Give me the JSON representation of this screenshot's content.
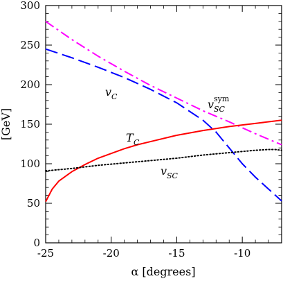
{
  "chart_data": {
    "type": "line",
    "title": "",
    "xlabel": "α [degrees]",
    "ylabel": "[GeV]",
    "xlim": [
      -25,
      -7
    ],
    "ylim": [
      0,
      300
    ],
    "x_ticks": [
      -25,
      -20,
      -15,
      -10
    ],
    "x_tick_labels": [
      "-25",
      "-20",
      "-15",
      "-10"
    ],
    "y_ticks": [
      0,
      50,
      100,
      150,
      200,
      250,
      300
    ],
    "y_tick_labels": [
      "0",
      "50",
      "100",
      "150",
      "200",
      "250",
      "300"
    ],
    "grid": false,
    "legend": "none",
    "series": [
      {
        "key": "v_C",
        "label_main": "v",
        "label_sub": "C",
        "label_sup": "",
        "color": "#0000ff",
        "style": "dashed",
        "x": [
          -25,
          -23,
          -21,
          -19,
          -17,
          -15,
          -13,
          -12,
          -11,
          -10,
          -9,
          -8,
          -7
        ],
        "y": [
          245,
          234,
          222,
          209,
          194,
          177,
          155,
          140,
          120,
          100,
          83,
          68,
          53
        ]
      },
      {
        "key": "v_SC_sym",
        "label_main": "v",
        "label_sub": "SC",
        "label_sup": "sym",
        "color": "#ff00ff",
        "style": "dashdot",
        "x": [
          -25,
          -23,
          -21,
          -19,
          -17,
          -15,
          -13,
          -11,
          -9,
          -7
        ],
        "y": [
          280,
          257,
          236,
          217,
          199,
          183,
          167,
          153,
          138,
          124
        ]
      },
      {
        "key": "T_C",
        "label_main": "T",
        "label_sub": "C",
        "label_sup": "",
        "color": "#ff0000",
        "style": "solid",
        "x": [
          -25,
          -24.5,
          -24,
          -23,
          -22,
          -21,
          -20,
          -19,
          -18,
          -17,
          -15,
          -13,
          -11,
          -9,
          -7
        ],
        "y": [
          52,
          68,
          78,
          90,
          99,
          107,
          113,
          119,
          124,
          128,
          136,
          142,
          147,
          151,
          155
        ]
      },
      {
        "key": "v_SC",
        "label_main": "v",
        "label_sub": "SC",
        "label_sup": "",
        "color": "#000000",
        "style": "dotted",
        "x": [
          -25,
          -23,
          -21,
          -19,
          -17,
          -15,
          -13,
          -11,
          -9,
          -8,
          -7.5,
          -7
        ],
        "y": [
          91,
          94,
          98,
          101,
          104,
          107,
          111,
          114,
          117,
          118,
          118,
          117
        ]
      }
    ]
  }
}
